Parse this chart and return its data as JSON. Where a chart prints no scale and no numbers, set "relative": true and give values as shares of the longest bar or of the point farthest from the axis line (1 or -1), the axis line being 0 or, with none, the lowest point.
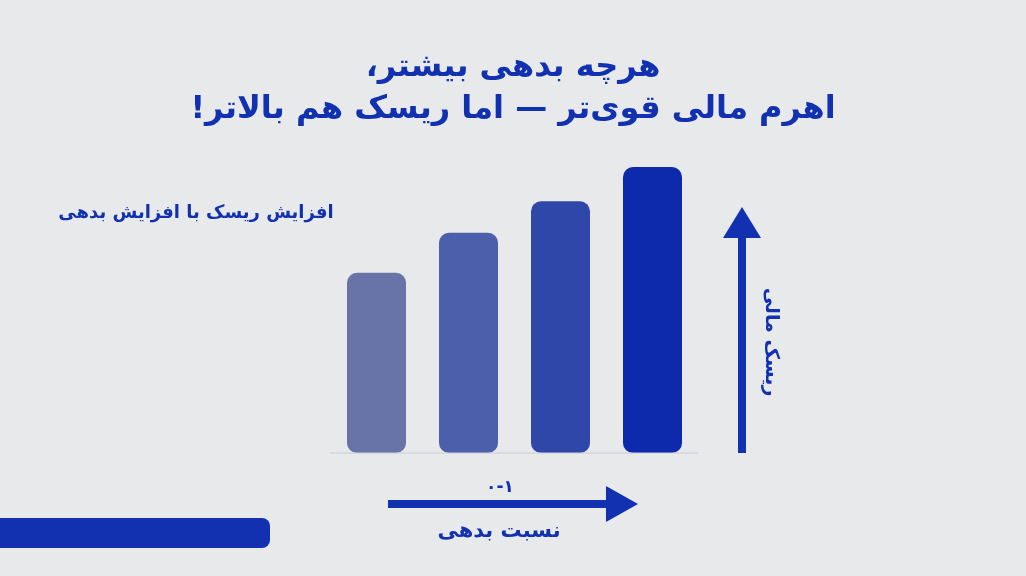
{
  "chart_data": {
    "type": "bar",
    "title": "هرچه بدهی بیشتر،\nاهرم مالی قوی‌تر — اما ریسک هم بالاتر!",
    "subtitle": "افزایش ریسک با افزایش بدهی",
    "xlabel": "نسبت بدهی",
    "ylabel": "ریسک مالی",
    "annotations": [
      "۰-۱"
    ],
    "categories": [
      null,
      null,
      null,
      null
    ],
    "values": [
      0.63,
      0.77,
      0.88,
      1
    ],
    "colors": [
      "#6874a8",
      "#4b5fab",
      "#2f47a9",
      "#0c2aab"
    ],
    "relative": true
  }
}
